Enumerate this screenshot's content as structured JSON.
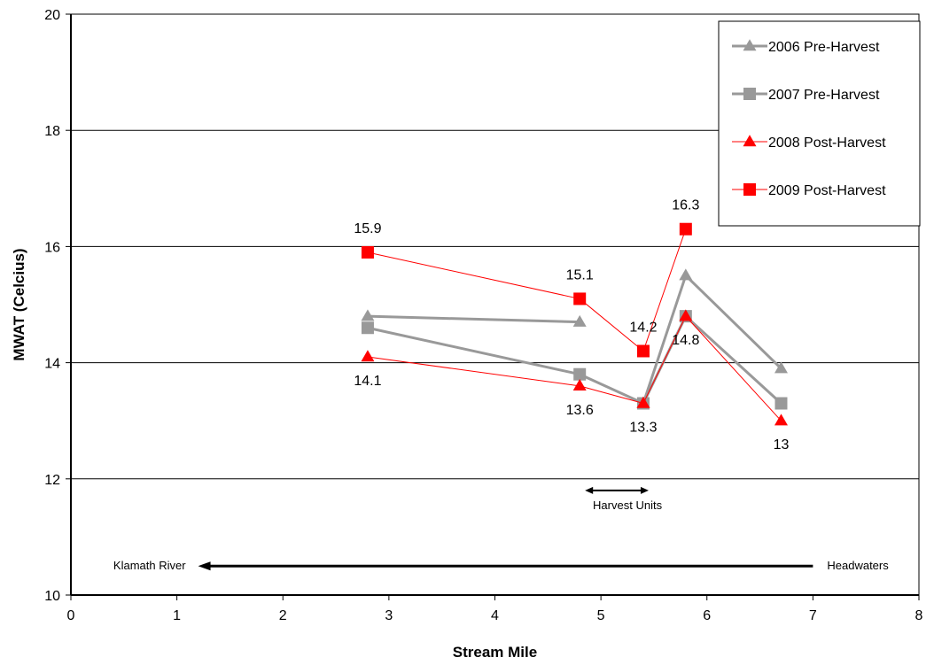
{
  "chart_data": {
    "type": "line",
    "xlabel": "Stream Mile",
    "ylabel": "MWAT (Celcius)",
    "xlim": [
      0,
      8
    ],
    "ylim": [
      10,
      20
    ],
    "x_ticks": [
      "0",
      "1",
      "2",
      "3",
      "4",
      "5",
      "6",
      "7",
      "8"
    ],
    "y_ticks": [
      "10",
      "12",
      "14",
      "16",
      "18",
      "20"
    ],
    "grid": "horizontal",
    "legend_position": "top-right",
    "series": [
      {
        "name": "2006 Pre-Harvest",
        "color": "#999999",
        "marker": "triangle",
        "points": [
          [
            2.8,
            14.8
          ],
          [
            4.8,
            14.7
          ],
          [
            5.4,
            13.3
          ],
          [
            5.8,
            15.5
          ],
          [
            6.7,
            13.9
          ]
        ],
        "segments": [
          [
            0,
            1
          ],
          [
            2,
            3
          ],
          [
            3,
            4
          ]
        ]
      },
      {
        "name": "2007 Pre-Harvest",
        "color": "#999999",
        "marker": "square",
        "points": [
          [
            2.8,
            14.6
          ],
          [
            4.8,
            13.8
          ],
          [
            5.4,
            13.3
          ],
          [
            5.8,
            14.8
          ],
          [
            6.7,
            13.3
          ]
        ],
        "segments": [
          [
            0,
            1
          ],
          [
            1,
            2
          ],
          [
            2,
            3
          ],
          [
            3,
            4
          ]
        ]
      },
      {
        "name": "2008 Post-Harvest",
        "color": "#ff0000",
        "marker": "triangle",
        "points": [
          [
            2.8,
            14.1
          ],
          [
            4.8,
            13.6
          ],
          [
            5.4,
            13.3
          ],
          [
            5.8,
            14.8
          ],
          [
            6.7,
            13.0
          ]
        ],
        "segments": [
          [
            0,
            1
          ],
          [
            1,
            2
          ],
          [
            2,
            3
          ],
          [
            3,
            4
          ]
        ]
      },
      {
        "name": "2009 Post-Harvest",
        "color": "#ff0000",
        "marker": "square",
        "points": [
          [
            2.8,
            15.9
          ],
          [
            4.8,
            15.1
          ],
          [
            5.4,
            14.2
          ],
          [
            5.8,
            16.3
          ]
        ],
        "segments": [
          [
            0,
            1
          ],
          [
            1,
            2
          ],
          [
            2,
            3
          ]
        ]
      }
    ],
    "data_labels": [
      {
        "text": "15.9",
        "x": 2.8,
        "y": 15.9,
        "pos": "above"
      },
      {
        "text": "15.1",
        "x": 4.8,
        "y": 15.1,
        "pos": "above"
      },
      {
        "text": "14.2",
        "x": 5.4,
        "y": 14.2,
        "pos": "above"
      },
      {
        "text": "16.3",
        "x": 5.8,
        "y": 16.3,
        "pos": "above"
      },
      {
        "text": "14.8",
        "x": 5.8,
        "y": 14.8,
        "pos": "below"
      },
      {
        "text": "14.1",
        "x": 2.8,
        "y": 14.1,
        "pos": "below"
      },
      {
        "text": "13.6",
        "x": 4.8,
        "y": 13.6,
        "pos": "below"
      },
      {
        "text": "13.3",
        "x": 5.4,
        "y": 13.3,
        "pos": "below"
      },
      {
        "text": "13",
        "x": 6.7,
        "y": 13.0,
        "pos": "below"
      }
    ],
    "annotations": {
      "harvest_units": {
        "text": "Harvest Units",
        "x_start": 4.85,
        "x_end": 5.45,
        "y": 11.8
      },
      "flow_arrow": {
        "from_label": "Headwaters",
        "to_label": "Klamath River",
        "x_start": 7.0,
        "x_end": 1.2,
        "y": 10.5
      }
    }
  }
}
